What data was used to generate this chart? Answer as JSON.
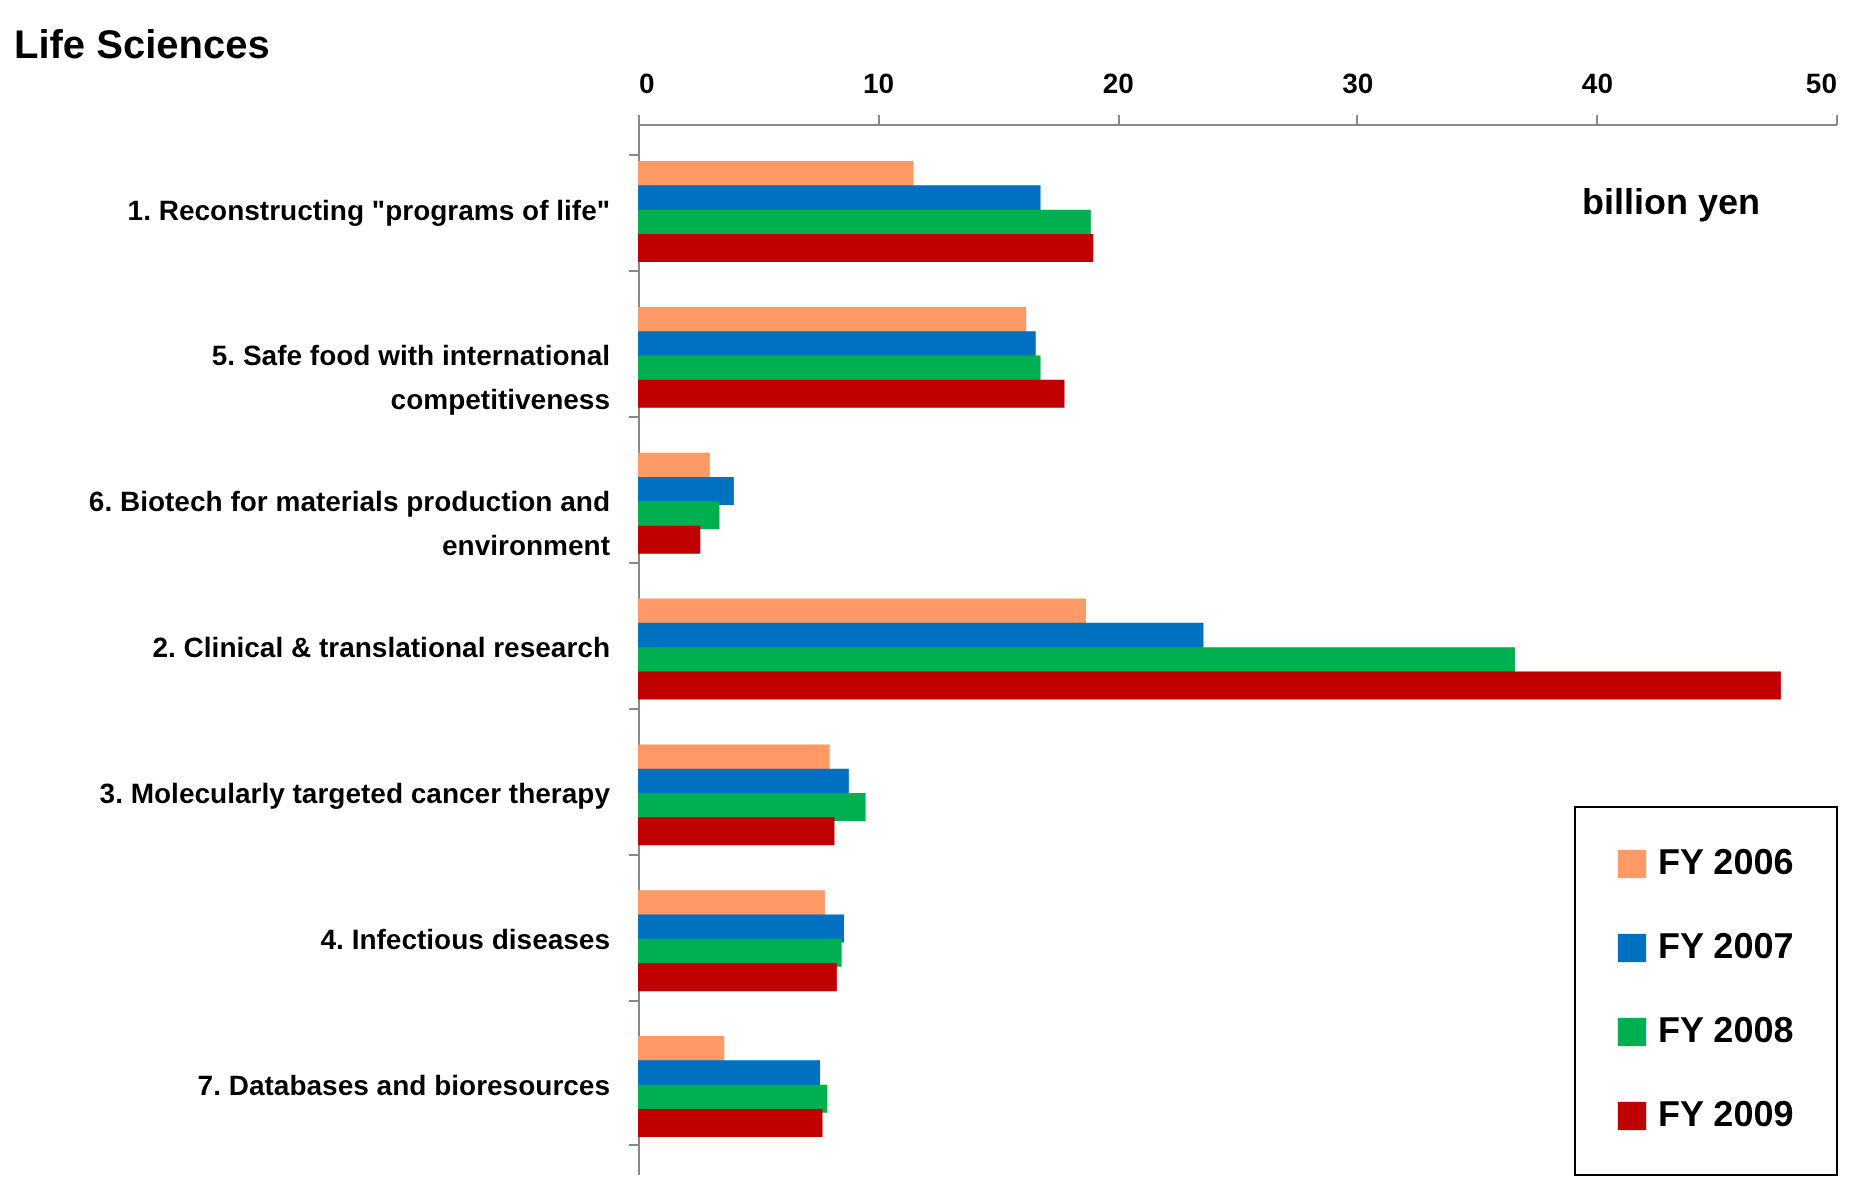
{
  "chart_data": {
    "type": "bar",
    "orientation": "horizontal",
    "title": "Life Sciences",
    "categories": [
      "1. Reconstructing \"programs of life\"",
      "5. Safe food with international competitiveness",
      "6. Biotech for materials production and environment",
      "2. Clinical & translational research",
      "3. Molecularly targeted cancer therapy",
      "4. Infectious diseases",
      "7. Databases and bioresources"
    ],
    "series": [
      {
        "name": "FY 2006",
        "color": "#ff9966",
        "values": [
          11.5,
          16.2,
          3.0,
          18.7,
          8.0,
          7.8,
          3.6
        ]
      },
      {
        "name": "FY 2007",
        "color": "#0070c0",
        "values": [
          16.8,
          16.6,
          4.0,
          23.6,
          8.8,
          8.6,
          7.6
        ]
      },
      {
        "name": "FY 2008",
        "color": "#00b050",
        "values": [
          18.9,
          16.8,
          3.4,
          36.6,
          9.5,
          8.5,
          7.9
        ]
      },
      {
        "name": "FY 2009",
        "color": "#c00000",
        "values": [
          19.0,
          17.8,
          2.6,
          47.7,
          8.2,
          8.3,
          7.7
        ]
      }
    ],
    "xlim": [
      0,
      50
    ],
    "xticks": [
      0,
      10,
      20,
      30,
      40,
      50
    ],
    "grid": false,
    "legend": "bottom right",
    "annotations": [
      "billion yen"
    ]
  }
}
